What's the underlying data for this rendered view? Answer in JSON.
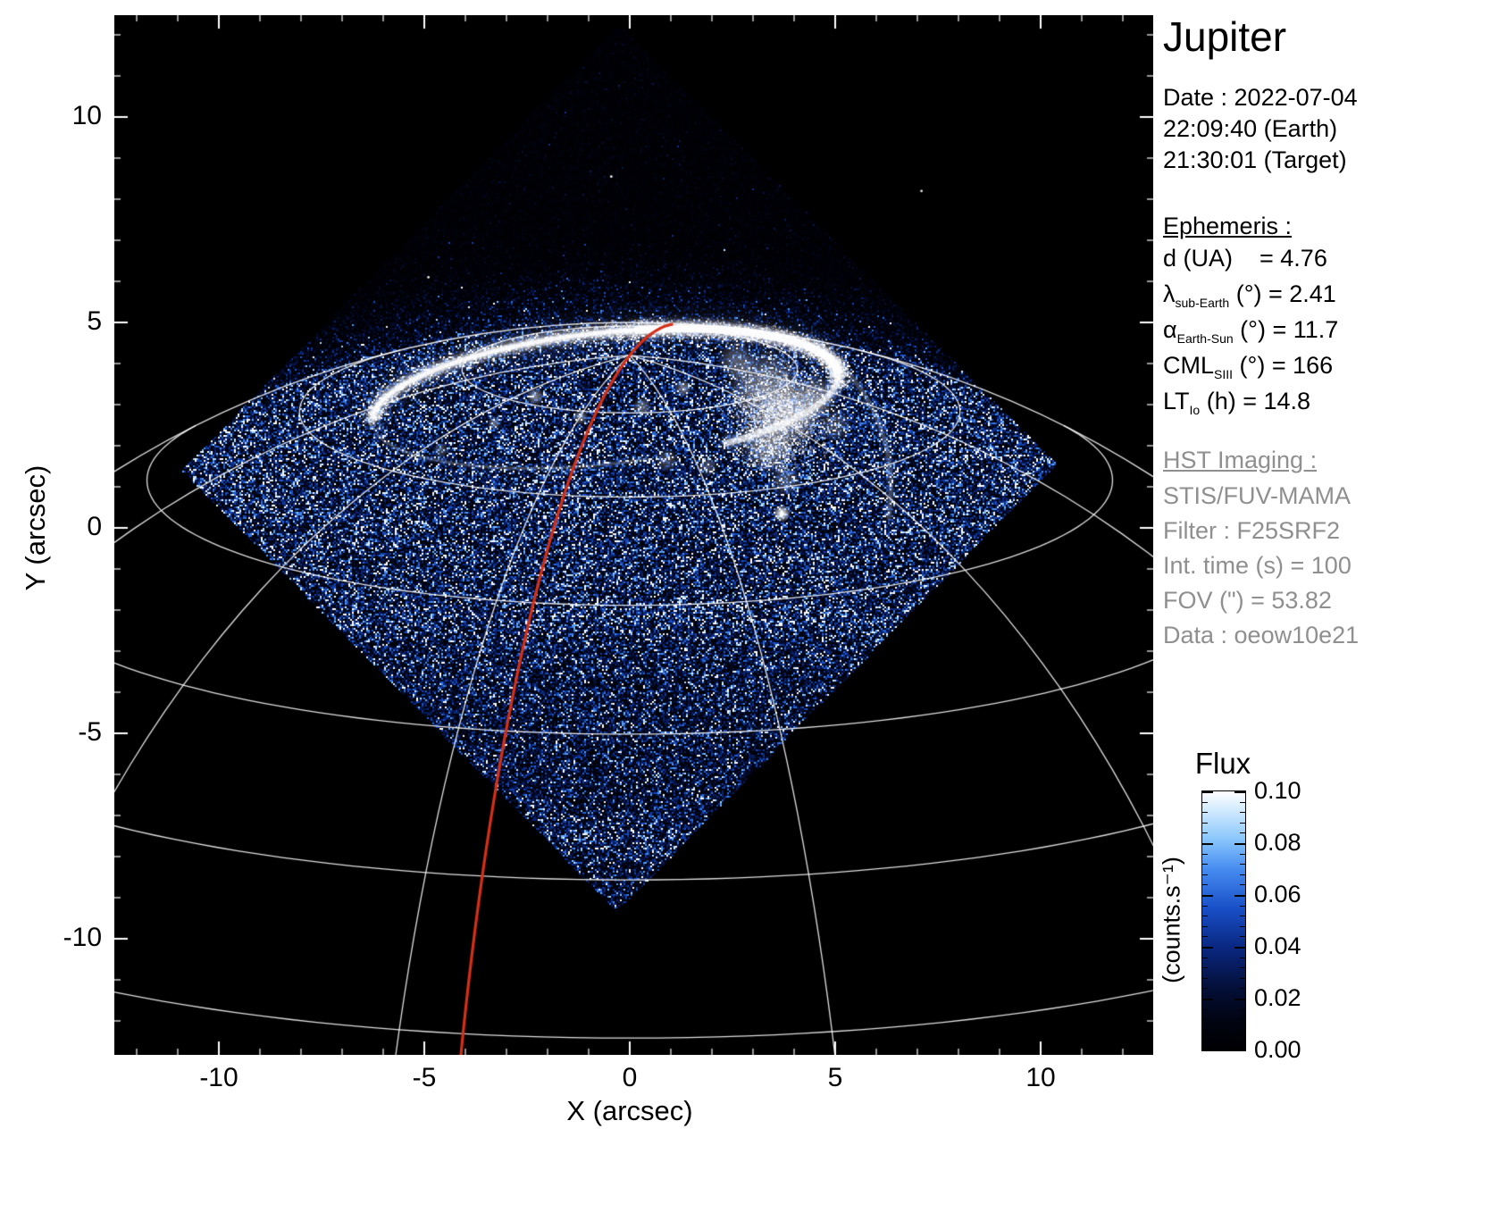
{
  "title": "Jupiter",
  "observation": {
    "lines": [
      "Date : 2022-07-04",
      "22:09:40 (Earth)",
      "21:30:01 (Target)"
    ]
  },
  "ephemeris": {
    "heading": "Ephemeris :",
    "rows": [
      {
        "pre": "d (UA)",
        "sub": "",
        "post": "    = 4.76"
      },
      {
        "pre": "λ",
        "sub": "sub-Earth",
        "post": " (°) = 2.41"
      },
      {
        "pre": "α",
        "sub": "Earth-Sun",
        "post": " (°) = 11.7"
      },
      {
        "pre": "CML",
        "sub": "SIII",
        "post": " (°) = 166"
      },
      {
        "pre": "LT",
        "sub": "Io",
        "post": " (h) = 14.8"
      }
    ]
  },
  "imaging": {
    "heading": "HST Imaging :",
    "lines": [
      "STIS/FUV-MAMA",
      "Filter : F25SRF2",
      "Int. time (s) = 100",
      "FOV (\") = 53.82",
      "Data : oeow10e21"
    ]
  },
  "axes": {
    "xlabel": "X (arcsec)",
    "ylabel": "Y (arcsec)",
    "x_ticks": [
      -10,
      -5,
      0,
      5,
      10
    ],
    "y_ticks": [
      10,
      5,
      0,
      -5,
      -10
    ]
  },
  "colorbar": {
    "title": "Flux",
    "unit": "(counts.s⁻¹)",
    "tick_labels": [
      "0.10",
      "0.08",
      "0.06",
      "0.04",
      "0.02",
      "0.00"
    ]
  },
  "colors": {
    "red_line": "#d43018",
    "graticule": "#ffffff",
    "gray_text": "#8f8f8f",
    "plot_background": "#000000",
    "page_background": "#ffffff"
  },
  "chart_data": {
    "type": "heatmap",
    "title": "Jupiter",
    "subtitle": "HST STIS/FUV-MAMA image of Jupiter northern UV aurora",
    "xlabel": "X (arcsec)",
    "ylabel": "Y (arcsec)",
    "xlim": [
      -12.54,
      12.74
    ],
    "ylim": [
      -12.8,
      12.48
    ],
    "x_ticks": [
      -10,
      -5,
      0,
      5,
      10
    ],
    "y_ticks": [
      -10,
      -5,
      0,
      5,
      10
    ],
    "minor_tick_step_arcsec": 1,
    "colorbar": {
      "label": "Flux",
      "unit": "(counts.s⁻¹)",
      "min": 0.0,
      "max": 0.1,
      "tick_step": 0.02,
      "colormap_stops": [
        [
          0.0,
          0,
          0,
          2
        ],
        [
          0.12,
          1,
          4,
          18
        ],
        [
          0.25,
          4,
          16,
          60
        ],
        [
          0.4,
          10,
          40,
          130
        ],
        [
          0.55,
          25,
          80,
          200
        ],
        [
          0.7,
          70,
          140,
          240
        ],
        [
          0.82,
          140,
          200,
          252
        ],
        [
          0.92,
          205,
          232,
          255
        ],
        [
          1.0,
          255,
          255,
          255
        ]
      ]
    },
    "detector_fov_corners_arcsec": [
      [
        -10.9,
        1.4
      ],
      [
        -0.25,
        12.25
      ],
      [
        10.4,
        1.55
      ],
      [
        -0.3,
        -9.35
      ]
    ],
    "planet_limb": {
      "center_arcsec": [
        0,
        -18.5
      ],
      "radius_arcsec": 23.5,
      "tilt_deg": 15
    },
    "graticule": {
      "parallels_lat_deg": [
        80,
        70,
        60,
        50,
        40,
        30
      ],
      "meridians_offset_deg": [
        -76,
        -46,
        -16,
        14,
        44,
        74
      ],
      "color": "#ffffff"
    },
    "red_meridian": {
      "offset_deg": -11.5,
      "color": "#d43018"
    },
    "aurora": {
      "oval_center_arcsec": [
        -0.6,
        3.15
      ],
      "oval_semi_axes_arcsec": [
        5.7,
        1.6
      ],
      "rotation_deg": -6,
      "bright_patch_center_arcsec": [
        3.6,
        2.7
      ],
      "footprint_spot_arcsec": [
        3.7,
        0.35
      ]
    },
    "noise": {
      "disk_mean_flux": 0.026,
      "sky_mean_flux": 0.0035,
      "hot_pixel_fraction": 0.015
    },
    "stars_arcsec": [
      [
        -0.45,
        8.55
      ],
      [
        7.1,
        8.2
      ],
      [
        -4.9,
        6.1
      ]
    ]
  }
}
